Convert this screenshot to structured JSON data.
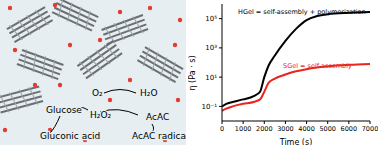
{
  "chart_data": {
    "type": "line",
    "xlabel": "Time (s)",
    "ylabel": "η (Pa · s)",
    "log": "y",
    "grid": false,
    "x": [
      0,
      200,
      500,
      1000,
      1500,
      1800,
      2000,
      2200,
      2500,
      3000,
      3500,
      4000,
      4500,
      5000,
      6000,
      7000
    ],
    "xlim": [
      0,
      7000
    ],
    "xticks": [
      0,
      1000,
      2000,
      3000,
      4000,
      5000,
      6000,
      7000
    ],
    "ylim": [
      0.01,
      1000000
    ],
    "yticks": [
      {
        "value": 0.1,
        "label": "10⁻¹"
      },
      {
        "value": 10,
        "label": "10¹"
      },
      {
        "value": 1000,
        "label": "10³"
      },
      {
        "value": 100000,
        "label": "10⁵"
      }
    ],
    "series": [
      {
        "name": "HGel = self-assembly + polymerization",
        "color": "#000000",
        "values": [
          0.1,
          0.15,
          0.2,
          0.3,
          0.5,
          1,
          10,
          60,
          300,
          3000,
          20000,
          80000,
          150000,
          200000,
          250000,
          280000
        ]
      },
      {
        "name": "SGel = self-assembly",
        "color": "#e8251f",
        "values": [
          0.05,
          0.07,
          0.1,
          0.15,
          0.2,
          0.3,
          1,
          4,
          8,
          15,
          25,
          35,
          45,
          55,
          70,
          80
        ]
      }
    ]
  },
  "diagram": {
    "labels": [
      "O₂",
      "H₂O",
      "Glucose",
      "H₂O₂",
      "Gluconic acid",
      "AcAC",
      "AcAC radical"
    ]
  }
}
